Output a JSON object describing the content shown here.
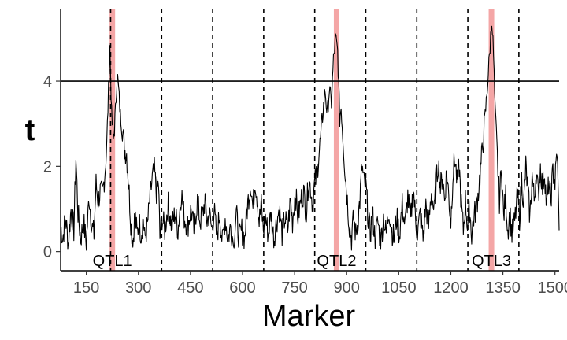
{
  "chart_data": {
    "type": "line",
    "xlabel": "Marker",
    "ylabel": "t",
    "xlim": [
      76,
      1512
    ],
    "ylim": [
      -0.45,
      5.7
    ],
    "x_ticks": [
      150,
      300,
      450,
      600,
      750,
      900,
      1050,
      1200,
      1350,
      1500
    ],
    "y_ticks": [
      0,
      2,
      4
    ],
    "threshold": 4,
    "chromosome_boundaries": [
      220,
      367,
      514,
      661,
      808,
      955,
      1102,
      1249,
      1396
    ],
    "qtl": [
      {
        "label": "QTL1",
        "x": 225
      },
      {
        "label": "QTL2",
        "x": 871
      },
      {
        "label": "QTL3",
        "x": 1317
      }
    ],
    "anchors": [
      [
        76,
        0.6
      ],
      [
        82,
        0.3
      ],
      [
        90,
        0.8
      ],
      [
        98,
        0.2
      ],
      [
        106,
        1.0
      ],
      [
        114,
        0.5
      ],
      [
        120,
        2.2
      ],
      [
        126,
        0.9
      ],
      [
        134,
        0.3
      ],
      [
        142,
        0.7
      ],
      [
        150,
        0.2
      ],
      [
        158,
        1.3
      ],
      [
        166,
        0.6
      ],
      [
        172,
        0.4
      ],
      [
        178,
        1.6
      ],
      [
        184,
        1.2
      ],
      [
        190,
        1.4
      ],
      [
        196,
        1.3
      ],
      [
        203,
        1.8
      ],
      [
        209,
        2.5
      ],
      [
        214,
        3.8
      ],
      [
        218,
        4.8
      ],
      [
        223,
        3.2
      ],
      [
        228,
        2.6
      ],
      [
        234,
        3.3
      ],
      [
        239,
        4.2
      ],
      [
        243,
        3.8
      ],
      [
        248,
        3.2
      ],
      [
        254,
        2.9
      ],
      [
        260,
        2.4
      ],
      [
        266,
        2.3
      ],
      [
        272,
        1.6
      ],
      [
        278,
        0.7
      ],
      [
        284,
        0.2
      ],
      [
        290,
        0.9
      ],
      [
        296,
        0.4
      ],
      [
        302,
        0.7
      ],
      [
        308,
        0.4
      ],
      [
        314,
        0.8
      ],
      [
        318,
        0.3
      ],
      [
        326,
        0.6
      ],
      [
        334,
        1.3
      ],
      [
        340,
        1.7
      ],
      [
        346,
        1.9
      ],
      [
        352,
        1.4
      ],
      [
        358,
        1.6
      ],
      [
        362,
        0.3
      ],
      [
        368,
        0.8
      ],
      [
        376,
        0.5
      ],
      [
        386,
        1.1
      ],
      [
        396,
        0.6
      ],
      [
        406,
        0.9
      ],
      [
        414,
        0.5
      ],
      [
        424,
        1.4
      ],
      [
        432,
        0.8
      ],
      [
        442,
        0.6
      ],
      [
        452,
        1.0
      ],
      [
        460,
        0.5
      ],
      [
        470,
        1.2
      ],
      [
        478,
        0.7
      ],
      [
        486,
        0.9
      ],
      [
        492,
        1.2
      ],
      [
        498,
        0.7
      ],
      [
        504,
        0.9
      ],
      [
        512,
        0.5
      ],
      [
        518,
        1.0
      ],
      [
        526,
        0.3
      ],
      [
        534,
        0.9
      ],
      [
        542,
        0.2
      ],
      [
        550,
        0.8
      ],
      [
        558,
        0.3
      ],
      [
        566,
        0.6
      ],
      [
        574,
        0.2
      ],
      [
        582,
        0.9
      ],
      [
        590,
        0.3
      ],
      [
        598,
        0.5
      ],
      [
        606,
        0.3
      ],
      [
        612,
        0.9
      ],
      [
        618,
        1.3
      ],
      [
        624,
        1.6
      ],
      [
        630,
        1.0
      ],
      [
        636,
        1.7
      ],
      [
        642,
        1.3
      ],
      [
        648,
        0.7
      ],
      [
        654,
        1.1
      ],
      [
        660,
        0.5
      ],
      [
        666,
        0.8
      ],
      [
        674,
        0.4
      ],
      [
        682,
        0.9
      ],
      [
        690,
        0.3
      ],
      [
        698,
        0.7
      ],
      [
        706,
        1.0
      ],
      [
        714,
        0.4
      ],
      [
        722,
        0.8
      ],
      [
        730,
        0.5
      ],
      [
        738,
        1.2
      ],
      [
        744,
        0.7
      ],
      [
        752,
        1.4
      ],
      [
        760,
        0.8
      ],
      [
        768,
        1.2
      ],
      [
        776,
        1.4
      ],
      [
        784,
        0.9
      ],
      [
        790,
        1.7
      ],
      [
        796,
        1.5
      ],
      [
        802,
        1.1
      ],
      [
        808,
        1.6
      ],
      [
        814,
        1.8
      ],
      [
        820,
        2.3
      ],
      [
        826,
        2.7
      ],
      [
        832,
        3.3
      ],
      [
        838,
        3.8
      ],
      [
        844,
        3.2
      ],
      [
        850,
        3.8
      ],
      [
        856,
        3.5
      ],
      [
        862,
        4.5
      ],
      [
        868,
        5.0
      ],
      [
        874,
        4.7
      ],
      [
        880,
        3.1
      ],
      [
        884,
        3.4
      ],
      [
        890,
        2.6
      ],
      [
        896,
        1.8
      ],
      [
        902,
        1.2
      ],
      [
        908,
        0.6
      ],
      [
        914,
        0.3
      ],
      [
        920,
        0.8
      ],
      [
        926,
        0.4
      ],
      [
        932,
        0.7
      ],
      [
        938,
        1.2
      ],
      [
        944,
        2.0
      ],
      [
        950,
        1.6
      ],
      [
        956,
        1.5
      ],
      [
        962,
        0.8
      ],
      [
        968,
        0.4
      ],
      [
        974,
        0.9
      ],
      [
        982,
        0.3
      ],
      [
        990,
        0.7
      ],
      [
        998,
        0.2
      ],
      [
        1006,
        0.8
      ],
      [
        1014,
        0.4
      ],
      [
        1022,
        1.0
      ],
      [
        1030,
        0.5
      ],
      [
        1036,
        0.3
      ],
      [
        1044,
        0.8
      ],
      [
        1052,
        0.4
      ],
      [
        1060,
        1.1
      ],
      [
        1068,
        0.6
      ],
      [
        1076,
        1.3
      ],
      [
        1084,
        0.7
      ],
      [
        1092,
        1.5
      ],
      [
        1098,
        0.8
      ],
      [
        1104,
        0.4
      ],
      [
        1112,
        0.9
      ],
      [
        1120,
        0.3
      ],
      [
        1128,
        1.1
      ],
      [
        1136,
        0.6
      ],
      [
        1144,
        1.4
      ],
      [
        1152,
        0.9
      ],
      [
        1158,
        1.6
      ],
      [
        1164,
        2.1
      ],
      [
        1170,
        1.5
      ],
      [
        1176,
        1.8
      ],
      [
        1182,
        1.2
      ],
      [
        1188,
        1.9
      ],
      [
        1194,
        1.3
      ],
      [
        1200,
        0.7
      ],
      [
        1206,
        1.8
      ],
      [
        1212,
        2.2
      ],
      [
        1218,
        1.6
      ],
      [
        1224,
        2.0
      ],
      [
        1230,
        1.1
      ],
      [
        1236,
        0.5
      ],
      [
        1242,
        1.2
      ],
      [
        1248,
        0.6
      ],
      [
        1254,
        1.0
      ],
      [
        1260,
        0.4
      ],
      [
        1266,
        0.8
      ],
      [
        1272,
        1.0
      ],
      [
        1278,
        1.3
      ],
      [
        1284,
        1.8
      ],
      [
        1290,
        2.3
      ],
      [
        1296,
        2.9
      ],
      [
        1302,
        3.5
      ],
      [
        1308,
        4.2
      ],
      [
        1313,
        4.8
      ],
      [
        1318,
        5.5
      ],
      [
        1323,
        4.6
      ],
      [
        1328,
        3.2
      ],
      [
        1334,
        2.2
      ],
      [
        1340,
        1.2
      ],
      [
        1346,
        2.0
      ],
      [
        1352,
        0.8
      ],
      [
        1358,
        1.3
      ],
      [
        1364,
        0.5
      ],
      [
        1370,
        0.9
      ],
      [
        1376,
        0.4
      ],
      [
        1384,
        0.7
      ],
      [
        1392,
        1.3
      ],
      [
        1398,
        0.8
      ],
      [
        1404,
        1.7
      ],
      [
        1410,
        1.1
      ],
      [
        1416,
        2.0
      ],
      [
        1422,
        1.4
      ],
      [
        1428,
        0.8
      ],
      [
        1434,
        1.8
      ],
      [
        1440,
        1.2
      ],
      [
        1446,
        1.9
      ],
      [
        1452,
        1.3
      ],
      [
        1458,
        2.0
      ],
      [
        1464,
        1.5
      ],
      [
        1470,
        1.9
      ],
      [
        1476,
        1.0
      ],
      [
        1482,
        1.6
      ],
      [
        1488,
        1.2
      ],
      [
        1494,
        1.9
      ],
      [
        1500,
        1.6
      ],
      [
        1506,
        2.4
      ],
      [
        1512,
        0.5
      ]
    ]
  }
}
